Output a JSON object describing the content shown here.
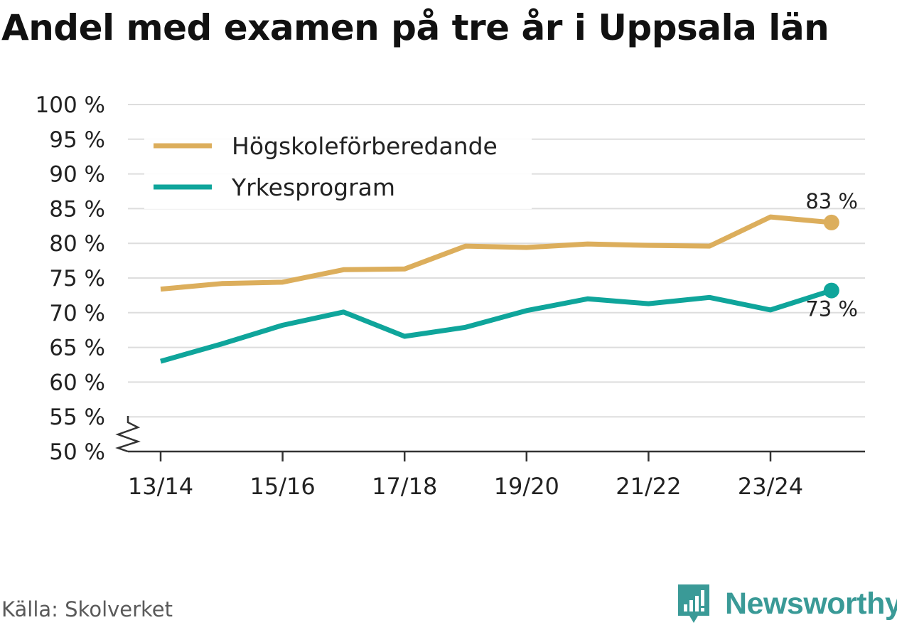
{
  "title": "Andel med examen på tre år i Uppsala län",
  "source": "Källa: Skolverket",
  "brand": {
    "name": "Newsworthy",
    "icon": "newsworthy-logo-icon"
  },
  "colors": {
    "hogskole": "#dcae5c",
    "yrkes": "#0fa59b",
    "grid": "#dddddd",
    "axis": "#333333",
    "text": "#222222",
    "brand": "#3a9a97"
  },
  "chart_data": {
    "type": "line",
    "title": "Andel med examen på tre år i Uppsala län",
    "x": [
      "13/14",
      "14/15",
      "15/16",
      "16/17",
      "17/18",
      "18/19",
      "19/20",
      "20/21",
      "21/22",
      "22/23",
      "23/24",
      "24/25"
    ],
    "x_tick_labels": [
      "13/14",
      "15/16",
      "17/18",
      "19/20",
      "21/22",
      "23/24"
    ],
    "y_ticks": [
      50,
      55,
      60,
      65,
      70,
      75,
      80,
      85,
      90,
      95,
      100
    ],
    "y_tick_labels": [
      "50 %",
      "55 %",
      "60 %",
      "65 %",
      "70 %",
      "75 %",
      "80 %",
      "85 %",
      "90 %",
      "95 %",
      "100 %"
    ],
    "ylim": [
      50,
      100
    ],
    "axis_break": true,
    "grid": true,
    "legend_position": "top-left",
    "series": [
      {
        "name": "Högskoleförberedande",
        "color": "#dcae5c",
        "values": [
          73.4,
          74.2,
          74.4,
          76.2,
          76.3,
          79.6,
          79.4,
          79.9,
          79.7,
          79.6,
          83.8,
          83.0
        ],
        "end_label": "83 %"
      },
      {
        "name": "Yrkesprogram",
        "color": "#0fa59b",
        "values": [
          63.0,
          65.5,
          68.2,
          70.1,
          66.6,
          67.9,
          70.3,
          72.0,
          71.3,
          72.2,
          70.4,
          73.2
        ],
        "end_label": "73 %"
      }
    ]
  }
}
